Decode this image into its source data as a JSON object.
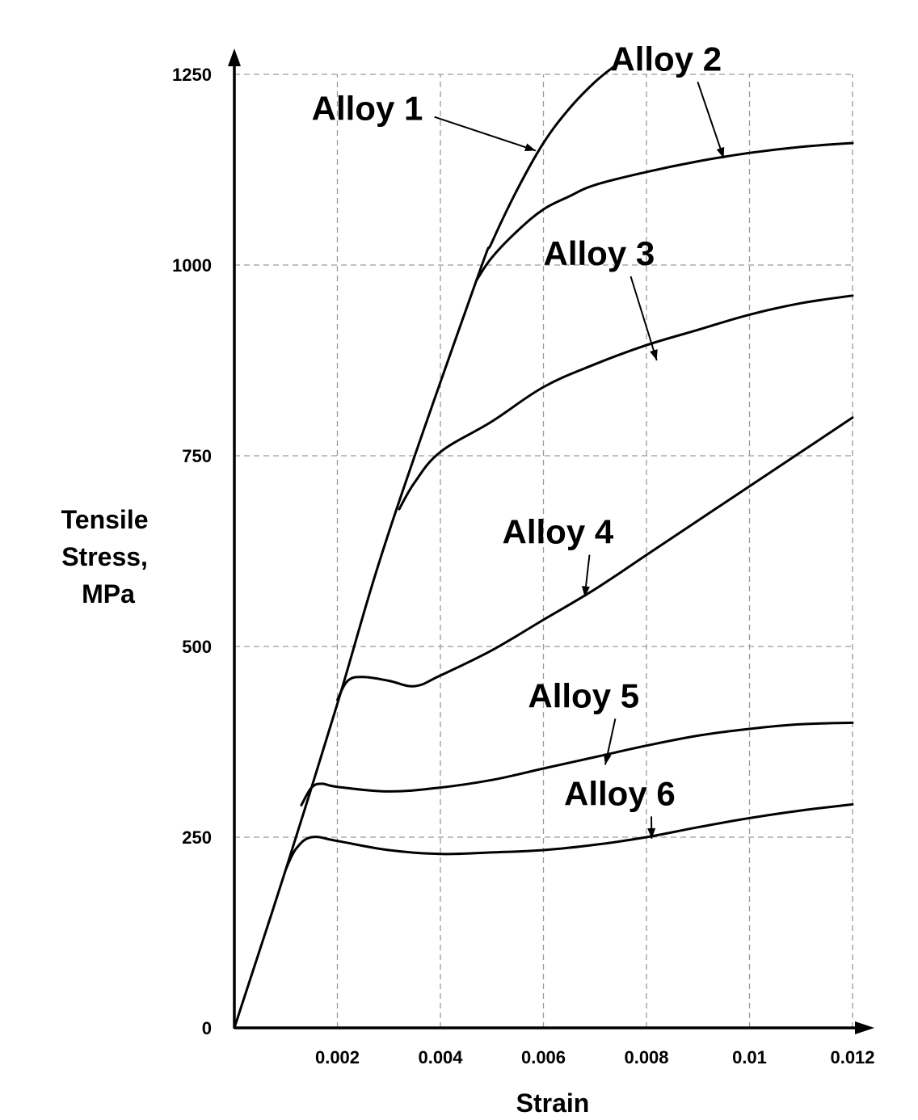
{
  "chart_data": {
    "type": "line",
    "xlabel": "Strain",
    "ylabel": [
      "Tensile",
      "Stress,",
      "MPa"
    ],
    "xlim": [
      0,
      0.012
    ],
    "ylim": [
      0,
      1250
    ],
    "x_ticks": [
      0.002,
      0.004,
      0.006,
      0.008,
      0.01,
      0.012
    ],
    "x_tick_labels": [
      "0.002",
      "0.004",
      "0.006",
      "0.008",
      "0.01",
      "0.012"
    ],
    "y_ticks": [
      0,
      250,
      500,
      750,
      1000,
      1250
    ],
    "y_tick_labels": [
      "0",
      "250",
      "500",
      "750",
      "1000",
      "1250"
    ],
    "grid": true,
    "series": [
      {
        "name": "Alloy 1",
        "label_at": [
          0.0015,
          1190
        ],
        "pointer_to": [
          0.00585,
          1150
        ],
        "points": [
          [
            0,
            0
          ],
          [
            0.001,
            208
          ],
          [
            0.002,
            425
          ],
          [
            0.003,
            650
          ],
          [
            0.0047,
            980
          ],
          [
            0.005,
            1030
          ],
          [
            0.0055,
            1100
          ],
          [
            0.006,
            1160
          ],
          [
            0.0065,
            1205
          ],
          [
            0.007,
            1240
          ],
          [
            0.0074,
            1262
          ]
        ]
      },
      {
        "name": "Alloy 2",
        "label_at": [
          0.0073,
          1255
        ],
        "pointer_to": [
          0.0095,
          1140
        ],
        "points": [
          [
            0.0047,
            980
          ],
          [
            0.005,
            1010
          ],
          [
            0.0055,
            1045
          ],
          [
            0.006,
            1073
          ],
          [
            0.0065,
            1090
          ],
          [
            0.007,
            1105
          ],
          [
            0.008,
            1122
          ],
          [
            0.009,
            1136
          ],
          [
            0.01,
            1147
          ],
          [
            0.011,
            1155
          ],
          [
            0.012,
            1160
          ]
        ]
      },
      {
        "name": "Alloy 3",
        "label_at": [
          0.006,
          1000
        ],
        "pointer_to": [
          0.0082,
          875
        ],
        "points": [
          [
            0.0032,
            680
          ],
          [
            0.0035,
            715
          ],
          [
            0.004,
            755
          ],
          [
            0.005,
            795
          ],
          [
            0.006,
            840
          ],
          [
            0.007,
            870
          ],
          [
            0.008,
            895
          ],
          [
            0.009,
            915
          ],
          [
            0.01,
            935
          ],
          [
            0.011,
            950
          ],
          [
            0.012,
            960
          ]
        ]
      },
      {
        "name": "Alloy 4",
        "label_at": [
          0.0052,
          635
        ],
        "pointer_to": [
          0.0068,
          565
        ],
        "points": [
          [
            0.002,
            430
          ],
          [
            0.0022,
            455
          ],
          [
            0.0025,
            460
          ],
          [
            0.003,
            455
          ],
          [
            0.0035,
            448
          ],
          [
            0.004,
            462
          ],
          [
            0.005,
            495
          ],
          [
            0.006,
            535
          ],
          [
            0.007,
            575
          ],
          [
            0.008,
            620
          ],
          [
            0.009,
            665
          ],
          [
            0.01,
            710
          ],
          [
            0.011,
            755
          ],
          [
            0.012,
            800
          ]
        ]
      },
      {
        "name": "Alloy 5",
        "label_at": [
          0.0057,
          420
        ],
        "pointer_to": [
          0.0072,
          345
        ],
        "points": [
          [
            0.0013,
            292
          ],
          [
            0.0015,
            315
          ],
          [
            0.0017,
            320
          ],
          [
            0.002,
            316
          ],
          [
            0.003,
            310
          ],
          [
            0.004,
            315
          ],
          [
            0.005,
            325
          ],
          [
            0.006,
            340
          ],
          [
            0.007,
            355
          ],
          [
            0.008,
            370
          ],
          [
            0.009,
            383
          ],
          [
            0.01,
            392
          ],
          [
            0.011,
            398
          ],
          [
            0.012,
            400
          ]
        ]
      },
      {
        "name": "Alloy 6",
        "label_at": [
          0.0064,
          292
        ],
        "pointer_to": [
          0.0081,
          248
        ],
        "points": [
          [
            0.001,
            208
          ],
          [
            0.0012,
            235
          ],
          [
            0.0015,
            250
          ],
          [
            0.002,
            245
          ],
          [
            0.003,
            233
          ],
          [
            0.004,
            228
          ],
          [
            0.005,
            230
          ],
          [
            0.006,
            233
          ],
          [
            0.007,
            240
          ],
          [
            0.008,
            250
          ],
          [
            0.009,
            263
          ],
          [
            0.01,
            275
          ],
          [
            0.011,
            285
          ],
          [
            0.012,
            293
          ]
        ]
      }
    ]
  }
}
